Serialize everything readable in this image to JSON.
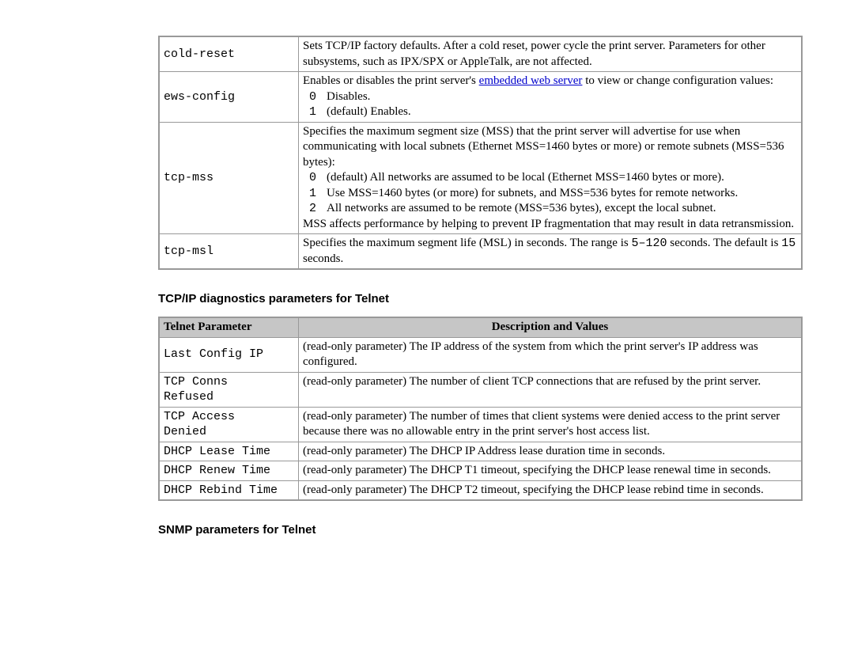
{
  "table1": {
    "rows": [
      {
        "param": "cold-reset",
        "desc_plain": "Sets TCP/IP factory defaults. After a cold reset, power cycle the print server. Parameters for other subsystems, such as IPX/SPX or AppleTalk, are not affected."
      },
      {
        "param": "ews-config",
        "desc_pre_link": "Enables or disables the print server's ",
        "link_text": "embedded web server",
        "desc_post_link": " to view or change configuration values:",
        "enum": [
          {
            "n": "0",
            "t": "Disables."
          },
          {
            "n": "1",
            "t": "(default) Enables."
          }
        ]
      },
      {
        "param": "tcp-mss",
        "desc_intro": "Specifies the maximum segment size (MSS) that the print server will advertise for use when communicating with local subnets (Ethernet MSS=1460 bytes or more) or remote subnets (MSS=536 bytes):",
        "enum": [
          {
            "n": "0",
            "t": "(default) All networks are assumed to be local (Ethernet MSS=1460 bytes or more)."
          },
          {
            "n": "1",
            "t": "Use MSS=1460 bytes (or more) for subnets, and MSS=536 bytes for remote networks."
          },
          {
            "n": "2",
            "t": "All networks are assumed to be remote (MSS=536 bytes), except the local subnet."
          }
        ],
        "desc_outro": "MSS affects performance by helping to prevent IP fragmentation that may result in data retransmission."
      },
      {
        "param": "tcp-msl",
        "desc_range_pre": "Specifies the maximum segment life (MSL) in seconds. The range is ",
        "desc_range_mono": "5–120",
        "desc_range_mid": " seconds. The default is ",
        "desc_default_mono": "15",
        "desc_range_post": " seconds."
      }
    ]
  },
  "headings": {
    "diagnostics": "TCP/IP diagnostics parameters for Telnet",
    "snmp": "SNMP parameters for Telnet"
  },
  "table2": {
    "header": {
      "param": "Telnet Parameter",
      "desc": "Description and Values"
    },
    "rows": [
      {
        "param": "Last Config IP",
        "desc": "(read-only parameter) The IP address of the system from which the print server's IP address was configured."
      },
      {
        "param": "TCP Conns\nRefused",
        "desc": "(read-only parameter) The number of client TCP connections that are refused by the print server."
      },
      {
        "param": "TCP Access\nDenied",
        "desc": "(read-only parameter) The number of times that client systems were denied access to the print server because there was no allowable entry in the print server's host access list."
      },
      {
        "param": "DHCP Lease Time",
        "desc": "(read-only parameter) The DHCP IP Address lease duration time in seconds."
      },
      {
        "param": "DHCP Renew Time",
        "desc": "(read-only parameter) The DHCP T1 timeout, specifying the DHCP lease renewal time in seconds."
      },
      {
        "param": "DHCP Rebind Time",
        "desc": "(read-only parameter) The DHCP T2 timeout, specifying the DHCP lease rebind time in seconds."
      }
    ]
  }
}
